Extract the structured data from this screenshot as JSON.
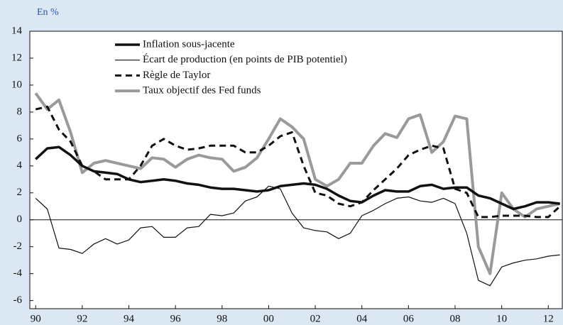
{
  "chart_data": {
    "type": "line",
    "subtitle": "En %",
    "x": [
      1990,
      1990.5,
      1991,
      1991.5,
      1992,
      1992.5,
      1993,
      1993.5,
      1994,
      1994.5,
      1995,
      1995.5,
      1996,
      1996.5,
      1997,
      1997.5,
      1998,
      1998.5,
      1999,
      1999.5,
      2000,
      2000.5,
      2001,
      2001.5,
      2002,
      2002.5,
      2003,
      2003.5,
      2004,
      2004.5,
      2005,
      2005.5,
      2006,
      2006.5,
      2007,
      2007.5,
      2008,
      2008.5,
      2009,
      2009.5,
      2010,
      2010.5,
      2011,
      2011.5,
      2012,
      2012.5
    ],
    "series": [
      {
        "name": "Inflation sous-jacente",
        "color": "#111111",
        "values": [
          4.5,
          5.3,
          5.4,
          4.8,
          4.0,
          3.6,
          3.5,
          3.4,
          3.0,
          2.8,
          2.9,
          3.0,
          2.9,
          2.7,
          2.6,
          2.4,
          2.3,
          2.3,
          2.2,
          2.1,
          2.2,
          2.5,
          2.6,
          2.7,
          2.6,
          2.3,
          1.8,
          1.4,
          1.3,
          1.8,
          2.2,
          2.1,
          2.1,
          2.5,
          2.6,
          2.3,
          2.4,
          2.4,
          1.8,
          1.6,
          1.2,
          0.8,
          1.0,
          1.3,
          1.3,
          1.2
        ]
      },
      {
        "name": "Écart de production (en points de PIB potentiel)",
        "color": "#111111",
        "values": [
          1.6,
          0.8,
          -2.1,
          -2.2,
          -2.5,
          -1.8,
          -1.4,
          -1.8,
          -1.5,
          -0.6,
          -0.5,
          -1.3,
          -1.3,
          -0.6,
          -0.5,
          0.4,
          0.3,
          0.5,
          1.4,
          1.7,
          2.5,
          2.3,
          0.5,
          -0.6,
          -0.8,
          -0.9,
          -1.4,
          -1.0,
          0.3,
          0.7,
          1.2,
          1.6,
          1.7,
          1.4,
          1.3,
          1.6,
          1.2,
          -1.0,
          -4.5,
          -4.9,
          -3.5,
          -3.2,
          -3.0,
          -2.9,
          -2.7,
          -2.6
        ]
      },
      {
        "name": "Règle de Taylor",
        "color": "#111111",
        "dashed": true,
        "values": [
          8.2,
          8.4,
          6.7,
          5.8,
          4.0,
          3.6,
          3.0,
          3.0,
          3.0,
          4.0,
          5.5,
          6.0,
          5.5,
          5.2,
          5.3,
          5.5,
          5.5,
          5.5,
          5.0,
          5.0,
          5.5,
          6.2,
          6.5,
          4.0,
          2.0,
          1.8,
          1.2,
          1.0,
          1.3,
          2.2,
          3.0,
          3.8,
          4.8,
          5.2,
          5.5,
          5.3,
          2.3,
          2.0,
          0.2,
          0.2,
          0.3,
          0.3,
          0.3,
          0.2,
          0.2,
          1.0
        ]
      },
      {
        "name": "Taux objectif des Fed funds",
        "color": "#9a9a9a",
        "values": [
          9.4,
          8.2,
          8.9,
          6.5,
          3.5,
          4.2,
          4.4,
          4.2,
          4.0,
          3.8,
          4.6,
          4.5,
          3.9,
          4.5,
          4.8,
          4.6,
          4.5,
          3.6,
          3.9,
          4.6,
          6.0,
          7.5,
          6.9,
          6.0,
          3.0,
          2.5,
          3.0,
          4.2,
          4.2,
          5.5,
          6.4,
          6.1,
          7.5,
          7.8,
          5.0,
          5.8,
          7.7,
          7.5,
          -2.0,
          -4.0,
          2.0,
          0.8,
          0.2,
          0.8,
          1.0,
          1.2
        ]
      }
    ],
    "xlim": [
      1989.75,
      2012.6
    ],
    "xticks": [
      {
        "value": 1990,
        "label": "90"
      },
      {
        "value": 1992,
        "label": "92"
      },
      {
        "value": 1994,
        "label": "94"
      },
      {
        "value": 1996,
        "label": "96"
      },
      {
        "value": 1998,
        "label": "98"
      },
      {
        "value": 2000,
        "label": "00"
      },
      {
        "value": 2002,
        "label": "02"
      },
      {
        "value": 2004,
        "label": "04"
      },
      {
        "value": 2006,
        "label": "06"
      },
      {
        "value": 2008,
        "label": "08"
      },
      {
        "value": 2010,
        "label": "10"
      },
      {
        "value": 2012,
        "label": "12"
      }
    ],
    "ylim": [
      -6.6,
      14
    ],
    "yticks": [
      -6,
      -4,
      -2,
      0,
      2,
      4,
      6,
      8,
      10,
      12,
      14
    ]
  }
}
